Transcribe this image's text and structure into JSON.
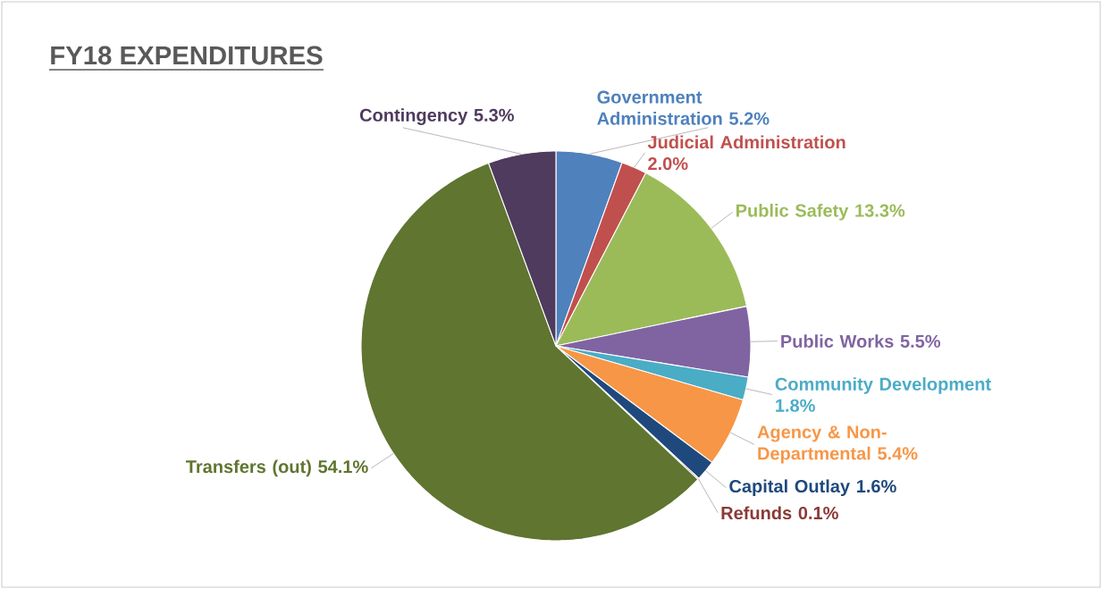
{
  "chart_data": {
    "type": "pie",
    "title": "FY18 EXPENDITURES",
    "categories": [
      "Government Administration",
      "Judicial Administration",
      "Public Safety",
      "Public Works",
      "Community Development",
      "Agency & Non-Departmental",
      "Capital Outlay",
      "Refunds",
      "Transfers (out)",
      "Contingency"
    ],
    "values": [
      5.2,
      2.0,
      13.3,
      5.5,
      1.8,
      5.4,
      1.6,
      0.1,
      54.1,
      5.3
    ],
    "value_labels": [
      "5.2%",
      "2.0%",
      "13.3%",
      "5.5%",
      "1.8%",
      "5.4%",
      "1.6%",
      "0.1%",
      "54.1%",
      "5.3%"
    ],
    "colors": [
      "#4f81bd",
      "#c0504d",
      "#9bbb59",
      "#8064a2",
      "#4bacc6",
      "#f79646",
      "#1f497d",
      "#8b3a36",
      "#5f7530",
      "#4f3b5e"
    ]
  }
}
